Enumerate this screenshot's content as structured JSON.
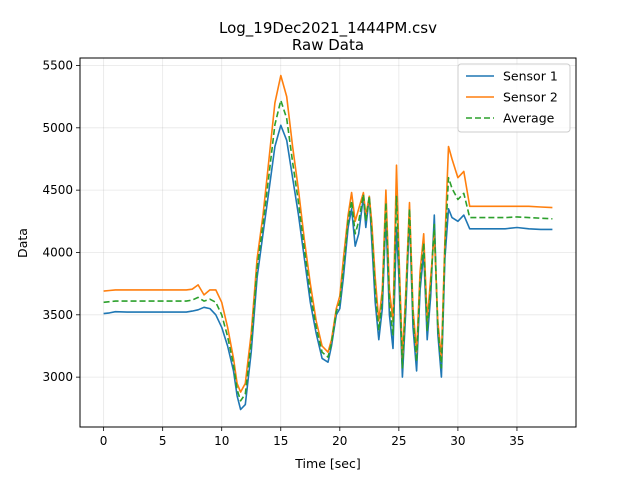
{
  "chart_data": {
    "type": "line",
    "title": "Log_19Dec2021_1444PM.csv",
    "subtitle": "Raw Data",
    "xlabel": "Time [sec]",
    "ylabel": "Data",
    "xlim": [
      -2,
      40
    ],
    "ylim": [
      2600,
      5560
    ],
    "xticks": [
      0,
      5,
      10,
      15,
      20,
      25,
      30,
      35
    ],
    "yticks": [
      3000,
      3500,
      4000,
      4500,
      5000,
      5500
    ],
    "grid": true,
    "legend_position": "top-right",
    "series": [
      {
        "name": "Sensor 1",
        "color": "#1f77b4",
        "style": "solid",
        "x": [
          0,
          0.5,
          1,
          2,
          3,
          4,
          5,
          6,
          7,
          7.5,
          8,
          8.5,
          9,
          9.5,
          10,
          10.5,
          11,
          11.3,
          11.6,
          12,
          12.5,
          13,
          13.5,
          14,
          14.5,
          15,
          15.5,
          16,
          16.5,
          17,
          17.5,
          18,
          18.5,
          19,
          19.3,
          19.7,
          20,
          20.3,
          20.7,
          21,
          21.3,
          21.6,
          22,
          22.2,
          22.5,
          22.7,
          23,
          23.3,
          23.6,
          23.9,
          24.2,
          24.5,
          24.8,
          25,
          25.3,
          25.6,
          25.9,
          26.2,
          26.5,
          26.8,
          27.1,
          27.4,
          27.7,
          28,
          28.3,
          28.6,
          28.9,
          29.2,
          29.5,
          30,
          30.5,
          31,
          32,
          33,
          34,
          35,
          36,
          37,
          38
        ],
        "y": [
          3510,
          3515,
          3525,
          3522,
          3522,
          3522,
          3522,
          3522,
          3522,
          3530,
          3540,
          3560,
          3550,
          3500,
          3400,
          3250,
          3050,
          2850,
          2740,
          2780,
          3200,
          3800,
          4150,
          4500,
          4850,
          5020,
          4900,
          4600,
          4300,
          3950,
          3600,
          3350,
          3150,
          3120,
          3250,
          3500,
          3550,
          3800,
          4200,
          4350,
          4050,
          4150,
          4450,
          4200,
          4450,
          4100,
          3600,
          3300,
          3550,
          4300,
          3500,
          3230,
          4200,
          3800,
          3000,
          3550,
          4300,
          3400,
          3050,
          3700,
          4000,
          3300,
          3650,
          4300,
          3350,
          3000,
          3950,
          4350,
          4280,
          4250,
          4300,
          4190,
          4190,
          4190,
          4190,
          4200,
          4190,
          4185,
          4185
        ]
      },
      {
        "name": "Sensor 2",
        "color": "#ff7f0e",
        "style": "solid",
        "x": [
          0,
          0.5,
          1,
          2,
          3,
          4,
          5,
          6,
          7,
          7.5,
          8,
          8.5,
          9,
          9.5,
          10,
          10.5,
          11,
          11.3,
          11.6,
          12,
          12.5,
          13,
          13.5,
          14,
          14.5,
          15,
          15.5,
          16,
          16.5,
          17,
          17.5,
          18,
          18.5,
          19,
          19.3,
          19.7,
          20,
          20.3,
          20.7,
          21,
          21.3,
          21.6,
          22,
          22.2,
          22.5,
          22.7,
          23,
          23.3,
          23.6,
          23.9,
          24.2,
          24.5,
          24.8,
          25,
          25.3,
          25.6,
          25.9,
          26.2,
          26.5,
          26.8,
          27.1,
          27.4,
          27.7,
          28,
          28.3,
          28.6,
          28.9,
          29.2,
          29.5,
          30,
          30.5,
          31,
          32,
          33,
          34,
          35,
          36,
          37,
          38
        ],
        "y": [
          3690,
          3695,
          3700,
          3700,
          3700,
          3700,
          3700,
          3700,
          3700,
          3705,
          3740,
          3660,
          3700,
          3700,
          3600,
          3400,
          3150,
          2950,
          2880,
          2950,
          3350,
          3950,
          4300,
          4750,
          5200,
          5420,
          5250,
          4850,
          4500,
          4100,
          3750,
          3450,
          3250,
          3200,
          3300,
          3550,
          3650,
          3950,
          4300,
          4480,
          4250,
          4350,
          4480,
          4300,
          4450,
          4250,
          3800,
          3450,
          3700,
          4500,
          3700,
          3450,
          4700,
          4000,
          3150,
          3700,
          4400,
          3550,
          3200,
          3850,
          4150,
          3450,
          3800,
          4150,
          3450,
          3150,
          4100,
          4850,
          4750,
          4600,
          4650,
          4370,
          4370,
          4370,
          4370,
          4370,
          4370,
          4365,
          4360
        ]
      },
      {
        "name": "Average",
        "color": "#2ca02c",
        "style": "dashed",
        "x": [
          0,
          0.5,
          1,
          2,
          3,
          4,
          5,
          6,
          7,
          7.5,
          8,
          8.5,
          9,
          9.5,
          10,
          10.5,
          11,
          11.3,
          11.6,
          12,
          12.5,
          13,
          13.5,
          14,
          14.5,
          15,
          15.5,
          16,
          16.5,
          17,
          17.5,
          18,
          18.5,
          19,
          19.3,
          19.7,
          20,
          20.3,
          20.7,
          21,
          21.3,
          21.6,
          22,
          22.2,
          22.5,
          22.7,
          23,
          23.3,
          23.6,
          23.9,
          24.2,
          24.5,
          24.8,
          25,
          25.3,
          25.6,
          25.9,
          26.2,
          26.5,
          26.8,
          27.1,
          27.4,
          27.7,
          28,
          28.3,
          28.6,
          28.9,
          29.2,
          29.5,
          30,
          30.5,
          31,
          32,
          33,
          34,
          35,
          36,
          37,
          38
        ],
        "y": [
          3600,
          3605,
          3610,
          3610,
          3610,
          3610,
          3610,
          3610,
          3610,
          3618,
          3640,
          3610,
          3625,
          3600,
          3500,
          3325,
          3100,
          2900,
          2810,
          2865,
          3275,
          3875,
          4225,
          4625,
          5025,
          5220,
          5075,
          4725,
          4400,
          4025,
          3675,
          3400,
          3200,
          3160,
          3275,
          3525,
          3600,
          3875,
          4250,
          4415,
          4150,
          4250,
          4465,
          4250,
          4450,
          4175,
          3700,
          3375,
          3625,
          4400,
          3600,
          3340,
          4450,
          3900,
          3075,
          3625,
          4350,
          3475,
          3125,
          3775,
          4075,
          3375,
          3725,
          4225,
          3400,
          3075,
          4025,
          4600,
          4515,
          4425,
          4475,
          4280,
          4280,
          4280,
          4280,
          4285,
          4280,
          4275,
          4270
        ]
      }
    ]
  }
}
